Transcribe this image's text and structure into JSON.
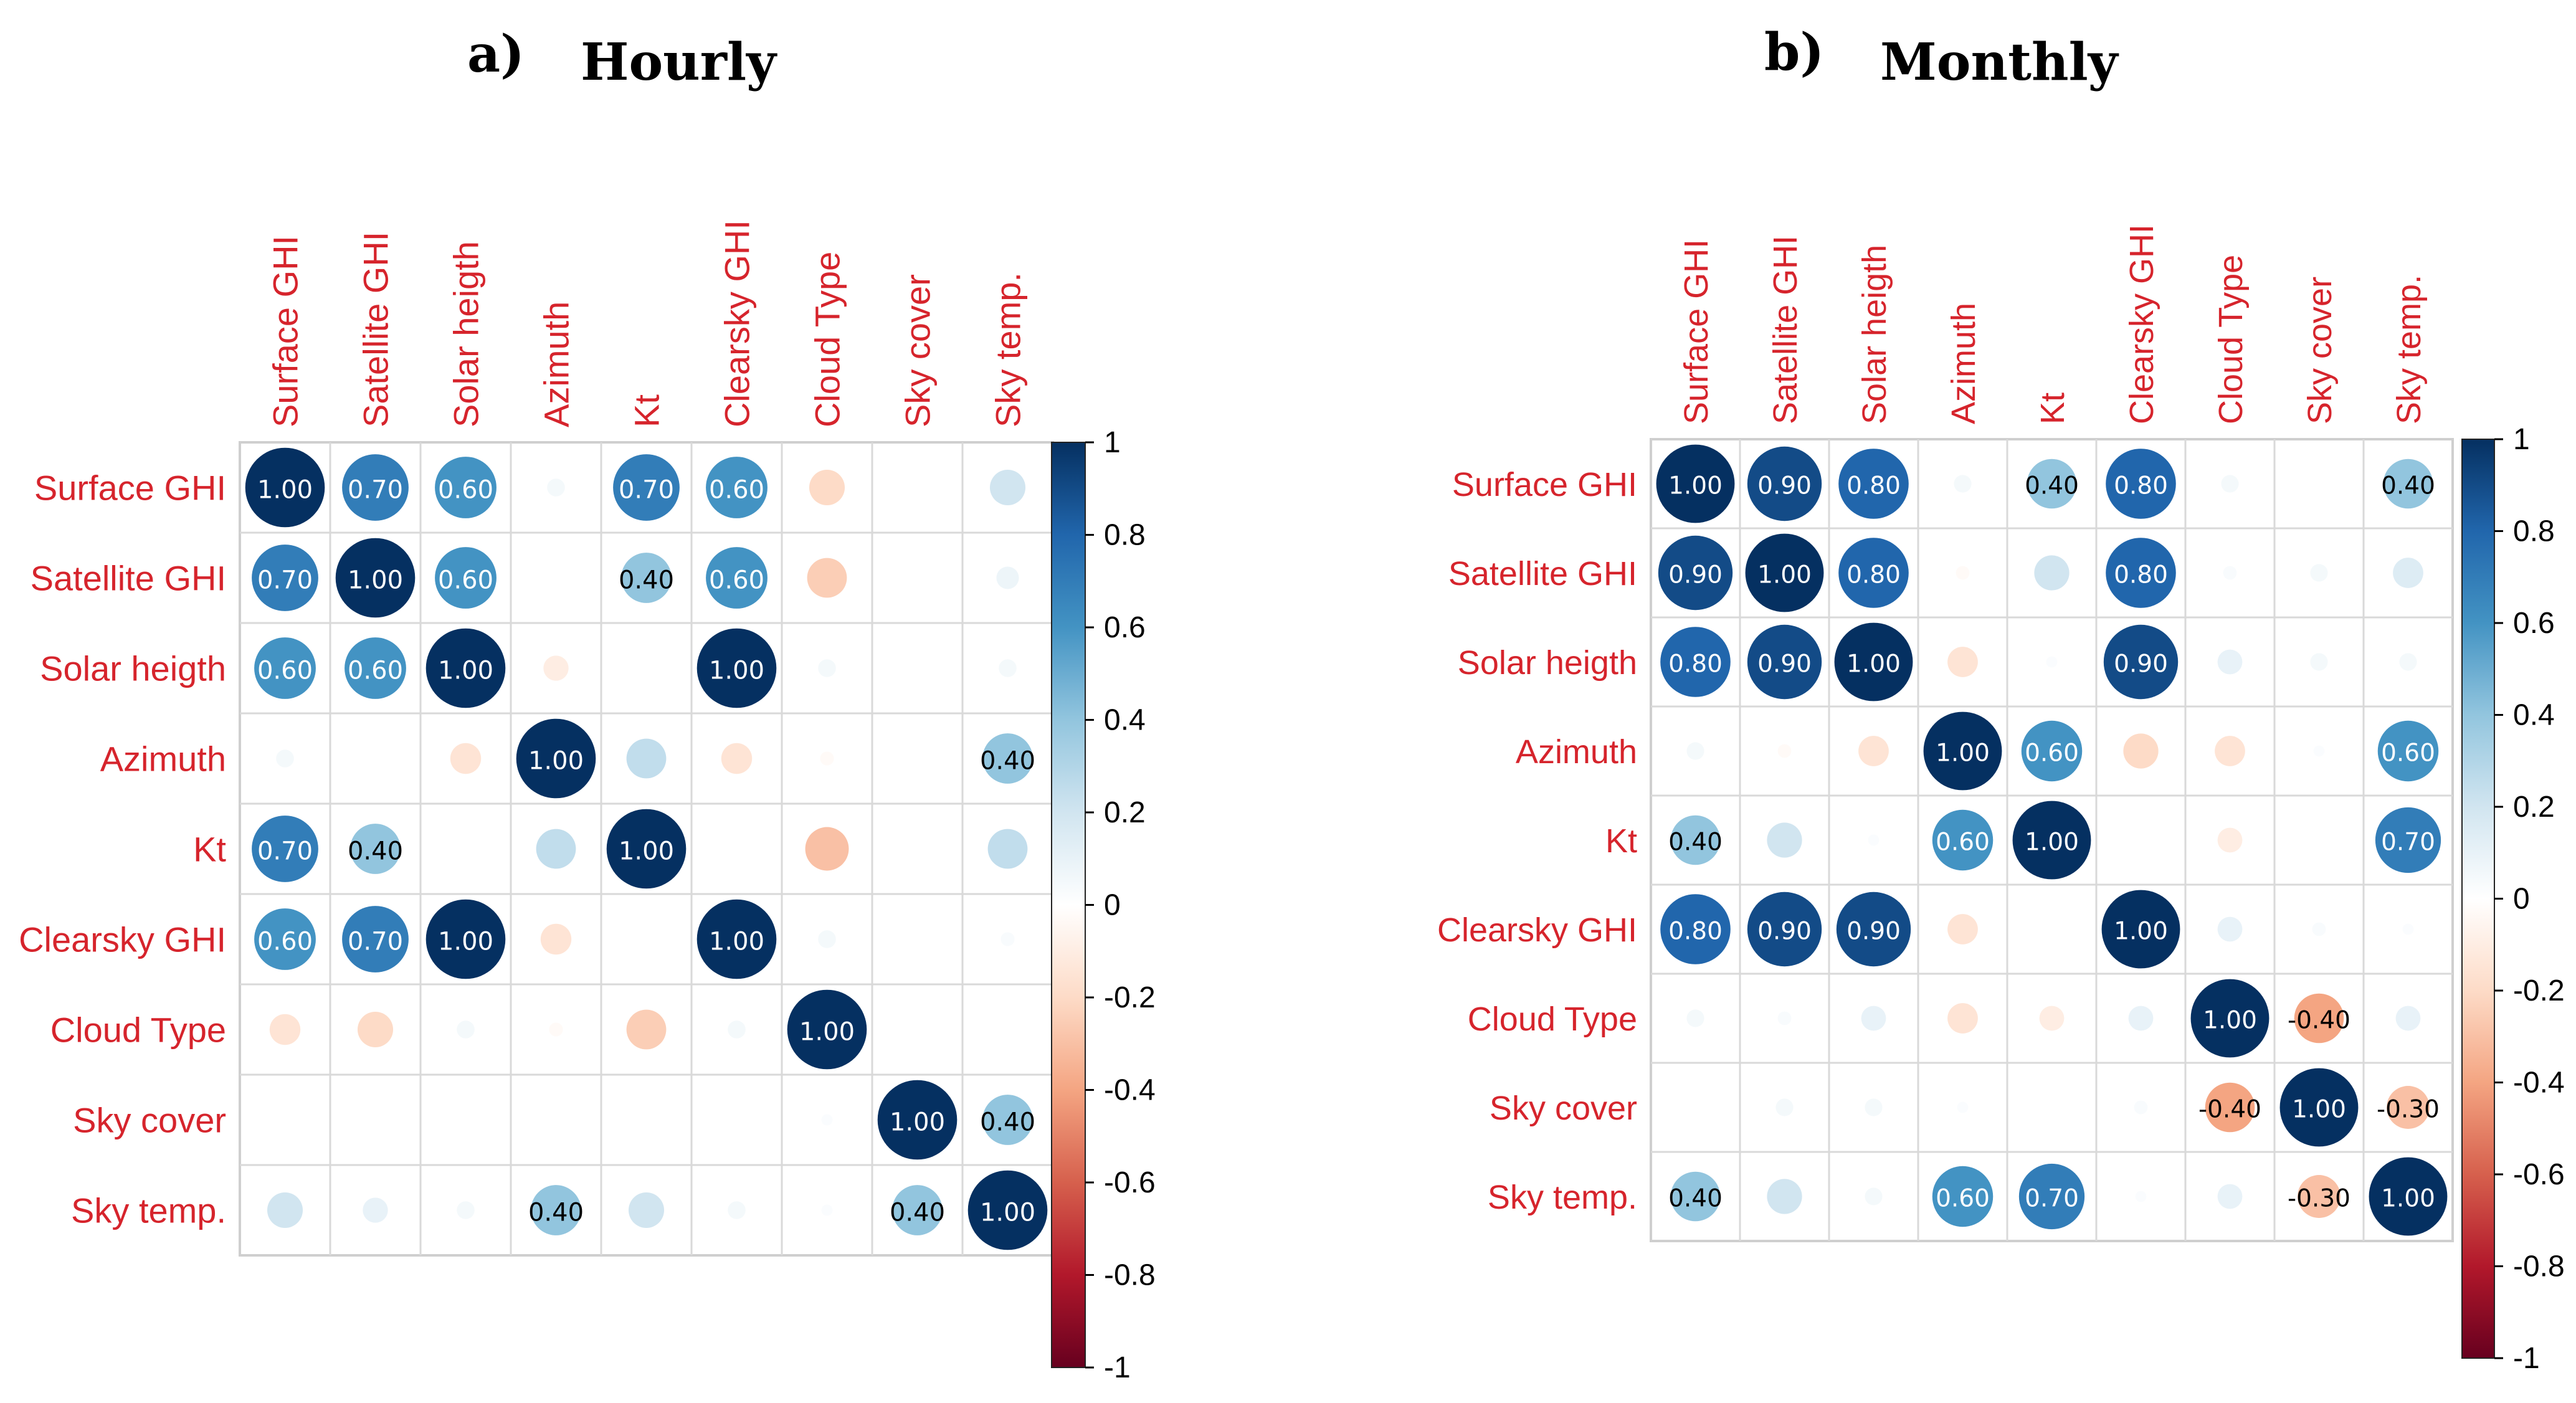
{
  "figure_domain": "Chart",
  "chart_data": [
    {
      "type": "heatmap",
      "panel_label": "a)",
      "title": "Hourly",
      "variables": [
        "Surface GHI",
        "Satellite GHI",
        "Solar heigth",
        "Azimuth",
        "Kt",
        "Clearsky GHI",
        "Cloud Type",
        "Sky cover",
        "Sky temp."
      ],
      "matrix": [
        [
          1.0,
          0.7,
          0.6,
          0.05,
          0.7,
          0.6,
          -0.2,
          0.0,
          0.2
        ],
        [
          0.7,
          1.0,
          0.6,
          0.0,
          0.4,
          0.6,
          -0.25,
          0.0,
          0.08
        ],
        [
          0.6,
          0.6,
          1.0,
          -0.1,
          0.0,
          1.0,
          0.05,
          0.0,
          0.05
        ],
        [
          0.05,
          0.0,
          -0.15,
          1.0,
          0.25,
          -0.15,
          -0.03,
          0.0,
          0.4
        ],
        [
          0.7,
          0.4,
          0.0,
          0.25,
          1.0,
          0.0,
          -0.3,
          0.0,
          0.25
        ],
        [
          0.6,
          0.7,
          1.0,
          -0.15,
          0.0,
          1.0,
          0.05,
          0.0,
          0.03
        ],
        [
          -0.15,
          -0.2,
          0.05,
          -0.03,
          -0.25,
          0.05,
          1.0,
          0.0,
          0.0
        ],
        [
          0.0,
          0.0,
          0.0,
          0.0,
          0.0,
          0.0,
          0.02,
          1.0,
          0.4
        ],
        [
          0.2,
          0.1,
          0.05,
          0.4,
          0.2,
          0.05,
          0.02,
          0.4,
          1.0
        ]
      ],
      "labels": [
        [
          "1.00",
          "0.70",
          "0.60",
          "",
          "0.70",
          "0.60",
          "",
          "",
          ""
        ],
        [
          "0.70",
          "1.00",
          "0.60",
          "",
          "0.40",
          "0.60",
          "",
          "",
          ""
        ],
        [
          "0.60",
          "0.60",
          "1.00",
          "",
          "",
          "1.00",
          "",
          "",
          ""
        ],
        [
          "",
          "",
          "",
          "1.00",
          "",
          "",
          "",
          "",
          "0.40"
        ],
        [
          "0.70",
          "0.40",
          "",
          "",
          "1.00",
          "",
          "",
          "",
          ""
        ],
        [
          "0.60",
          "0.70",
          "1.00",
          "",
          "",
          "1.00",
          "",
          "",
          ""
        ],
        [
          "",
          "",
          "",
          "",
          "",
          "",
          "1.00",
          "",
          ""
        ],
        [
          "",
          "",
          "",
          "",
          "",
          "",
          "",
          "1.00",
          "0.40"
        ],
        [
          "",
          "",
          "",
          "0.40",
          "",
          "",
          "",
          "0.40",
          "1.00"
        ]
      ],
      "colorbar": {
        "range": [
          -1,
          1
        ],
        "ticks": [
          "1",
          "0.8",
          "0.6",
          "0.4",
          "0.2",
          "0",
          "-0.2",
          "-0.4",
          "-0.6",
          "-0.8",
          "-1"
        ]
      }
    },
    {
      "type": "heatmap",
      "panel_label": "b)",
      "title": "Monthly",
      "variables": [
        "Surface GHI",
        "Satellite GHI",
        "Solar heigth",
        "Azimuth",
        "Kt",
        "Clearsky GHI",
        "Cloud Type",
        "Sky cover",
        "Sky temp."
      ],
      "matrix": [
        [
          1.0,
          0.9,
          0.8,
          0.05,
          0.4,
          0.8,
          0.05,
          0.0,
          0.4
        ],
        [
          0.9,
          1.0,
          0.8,
          -0.03,
          0.2,
          0.8,
          0.03,
          0.05,
          0.15
        ],
        [
          0.8,
          0.9,
          1.0,
          -0.15,
          0.02,
          0.9,
          0.1,
          0.05,
          0.05
        ],
        [
          0.05,
          -0.03,
          -0.15,
          1.0,
          0.6,
          -0.2,
          -0.15,
          0.02,
          0.6
        ],
        [
          0.4,
          0.2,
          0.02,
          0.6,
          1.0,
          0.0,
          -0.1,
          0.0,
          0.7
        ],
        [
          0.8,
          0.9,
          0.9,
          -0.15,
          0.0,
          1.0,
          0.1,
          0.03,
          0.02
        ],
        [
          0.05,
          0.03,
          0.1,
          -0.15,
          -0.1,
          0.1,
          1.0,
          -0.4,
          0.1
        ],
        [
          0.0,
          0.05,
          0.05,
          0.02,
          0.0,
          0.03,
          -0.4,
          1.0,
          -0.3
        ],
        [
          0.4,
          0.2,
          0.05,
          0.6,
          0.7,
          0.02,
          0.1,
          -0.3,
          1.0
        ]
      ],
      "labels": [
        [
          "1.00",
          "0.90",
          "0.80",
          "",
          "0.40",
          "0.80",
          "",
          "",
          "0.40"
        ],
        [
          "0.90",
          "1.00",
          "0.80",
          "",
          "",
          "0.80",
          "",
          "",
          ""
        ],
        [
          "0.80",
          "0.90",
          "1.00",
          "",
          "",
          "0.90",
          "",
          "",
          ""
        ],
        [
          "",
          "",
          "",
          "1.00",
          "0.60",
          "",
          "",
          "",
          "0.60"
        ],
        [
          "0.40",
          "",
          "",
          "0.60",
          "1.00",
          "",
          "",
          "",
          "0.70"
        ],
        [
          "0.80",
          "0.90",
          "0.90",
          "",
          "",
          "1.00",
          "",
          "",
          ""
        ],
        [
          "",
          "",
          "",
          "",
          "",
          "",
          "1.00",
          "-0.40",
          ""
        ],
        [
          "",
          "",
          "",
          "",
          "",
          "",
          "-0.40",
          "1.00",
          "-0.30"
        ],
        [
          "0.40",
          "",
          "",
          "0.60",
          "0.70",
          "",
          "",
          "-0.30",
          "1.00"
        ]
      ],
      "colorbar": {
        "range": [
          -1,
          1
        ],
        "ticks": [
          "1",
          "0.8",
          "0.6",
          "0.4",
          "0.2",
          "0",
          "-0.2",
          "-0.4",
          "-0.6",
          "-0.8",
          "-1"
        ]
      }
    }
  ]
}
